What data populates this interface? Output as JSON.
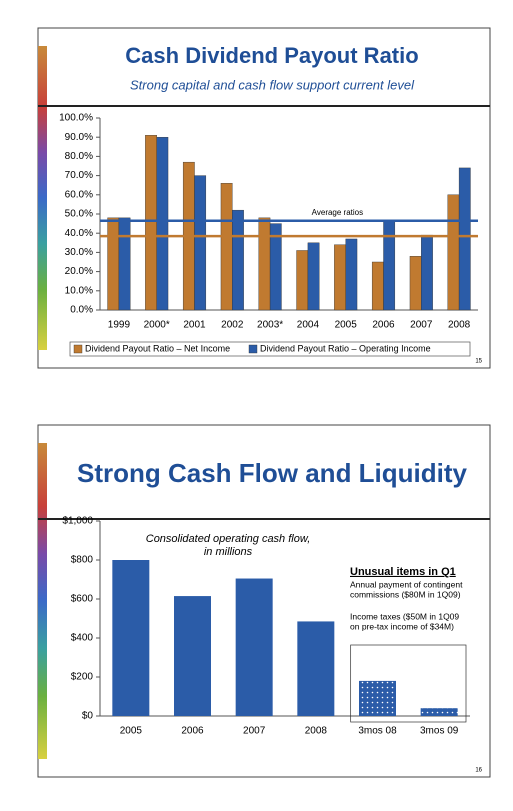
{
  "chart_data": [
    {
      "type": "bar",
      "title": "Cash Dividend Payout Ratio",
      "subtitle": "Strong capital and cash flow support current level",
      "categories": [
        "1999",
        "2000*",
        "2001",
        "2002",
        "2003*",
        "2004",
        "2005",
        "2006",
        "2007",
        "2008"
      ],
      "series": [
        {
          "name": "Dividend Payout Ratio – Net Income",
          "color": "#c07a30",
          "values": [
            48,
            91,
            77,
            66,
            48,
            31,
            34,
            25,
            28,
            60
          ]
        },
        {
          "name": "Dividend Payout Ratio – Operating Income",
          "color": "#2b5ca8",
          "values": [
            48,
            90,
            70,
            52,
            45,
            35,
            37,
            46,
            39,
            74
          ]
        }
      ],
      "ylim": [
        0,
        100
      ],
      "yticks": [
        {
          "value": 0,
          "label": "0.0%"
        },
        {
          "value": 10,
          "label": "10.0%"
        },
        {
          "value": 20,
          "label": "20.0%"
        },
        {
          "value": 30,
          "label": "30.0%"
        },
        {
          "value": 40,
          "label": "40.0%"
        },
        {
          "value": 50,
          "label": "50.0%"
        },
        {
          "value": 60,
          "label": "60.0%"
        },
        {
          "value": 70,
          "label": "70.0%"
        },
        {
          "value": 80,
          "label": "80.0%"
        },
        {
          "value": 90,
          "label": "90.0%"
        },
        {
          "value": 100,
          "label": "100.0%"
        }
      ],
      "reference_lines": [
        {
          "value": 46.5,
          "color": "#2b5ca8"
        },
        {
          "value": 38.5,
          "color": "#c07a30"
        }
      ],
      "reference_label": "Average ratios",
      "legend": "bottom",
      "page_number": "15"
    },
    {
      "type": "bar",
      "title": "Strong Cash Flow and Liquidity",
      "caption": [
        "Consolidated operating cash flow,",
        "in millions"
      ],
      "categories": [
        "2005",
        "2006",
        "2007",
        "2008",
        "3mos 08",
        "3mos 09"
      ],
      "values": [
        800,
        615,
        705,
        485,
        180,
        40
      ],
      "color": "#2b5ca8",
      "bar_styles": [
        "solid",
        "solid",
        "solid",
        "solid",
        "dotted",
        "dotted"
      ],
      "ylim": [
        0,
        1000
      ],
      "yticks": [
        {
          "value": 0,
          "label": "$0"
        },
        {
          "value": 200,
          "label": "$200"
        },
        {
          "value": 400,
          "label": "$400"
        },
        {
          "value": 600,
          "label": "$600"
        },
        {
          "value": 800,
          "label": "$800"
        },
        {
          "value": 1000,
          "label": "$1,000"
        }
      ],
      "note_heading": "Unusual items in Q1",
      "notes": [
        [
          "Annual payment of contingent",
          "commissions ($80M in 1Q09)"
        ],
        [
          "Income taxes ($50M in 1Q09",
          "on pre-tax income of $34M)"
        ]
      ],
      "page_number": "16"
    }
  ]
}
